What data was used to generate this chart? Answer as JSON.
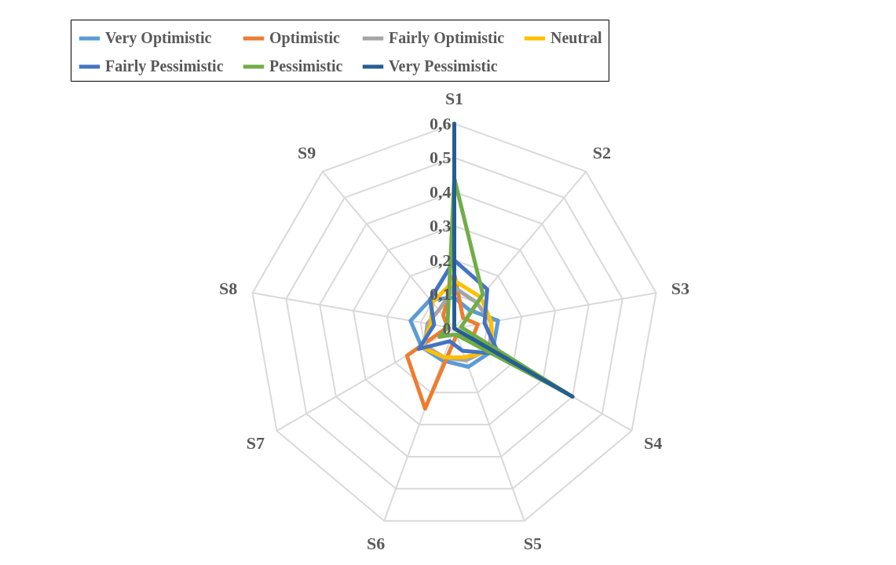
{
  "chart_data": {
    "type": "radar",
    "categories": [
      "S1",
      "S2",
      "S3",
      "S4",
      "S5",
      "S6",
      "S7",
      "S8",
      "S9"
    ],
    "ylim": [
      0,
      0.6
    ],
    "yticks": [
      0,
      {
        "value": 0.1,
        "label": "0,1"
      },
      {
        "value": 0.2,
        "label": "0,2"
      },
      {
        "value": 0.3,
        "label": "0,3"
      },
      {
        "value": 0.4,
        "label": "0,4"
      },
      {
        "value": 0.5,
        "label": "0,5"
      },
      {
        "value": 0.6,
        "label": "0,6"
      }
    ],
    "grid": true,
    "legend": "top",
    "series": [
      {
        "name": "Very Optimistic",
        "color": "#5b9bd5",
        "values": [
          0.09,
          0.07,
          0.13,
          0.13,
          0.12,
          0.1,
          0.11,
          0.13,
          0.11
        ]
      },
      {
        "name": "Optimistic",
        "color": "#ed7d31",
        "values": [
          0.16,
          0.04,
          0.07,
          0.06,
          0.02,
          0.25,
          0.16,
          0.02,
          0.05
        ]
      },
      {
        "name": "Fairly Optimistic",
        "color": "#a5a5a5",
        "values": [
          0.12,
          0.1,
          0.11,
          0.12,
          0.1,
          0.09,
          0.1,
          0.08,
          0.07
        ]
      },
      {
        "name": "Neutral",
        "color": "#ffc000",
        "values": [
          0.14,
          0.12,
          0.11,
          0.13,
          0.09,
          0.09,
          0.11,
          0.07,
          0.1
        ]
      },
      {
        "name": "Fairly Pessimistic",
        "color": "#4472c4",
        "values": [
          0.2,
          0.15,
          0.09,
          0.15,
          0.07,
          0.04,
          0.12,
          0.06,
          0.11
        ]
      },
      {
        "name": "Pessimistic",
        "color": "#70ad47",
        "values": [
          0.44,
          0.13,
          0.02,
          0.38,
          0.02,
          0.02,
          0.05,
          0.02,
          0.03
        ]
      },
      {
        "name": "Very Pessimistic",
        "color": "#255e91",
        "values": [
          0.6,
          0,
          0,
          0.4,
          0,
          0,
          0,
          0,
          0
        ]
      }
    ]
  }
}
